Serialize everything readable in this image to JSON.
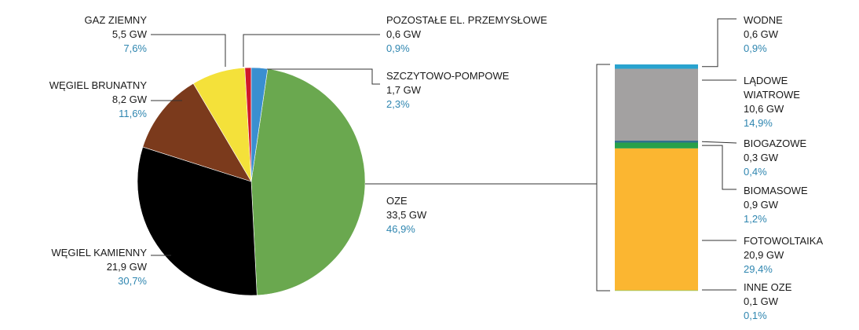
{
  "chart_data": {
    "type": "pie",
    "unit": "GW",
    "pie": {
      "slices": [
        {
          "name": "OZE",
          "gw": "33,5 GW",
          "pct": "46,9%",
          "value": 46.9,
          "color": "#6aa84f"
        },
        {
          "name": "WĘGIEL KAMIENNY",
          "gw": "21,9 GW",
          "pct": "30,7%",
          "value": 30.7,
          "color": "#000000"
        },
        {
          "name": "WĘGIEL BRUNATNY",
          "gw": "8,2 GW",
          "pct": "11,6%",
          "value": 11.6,
          "color": "#7b3a1c"
        },
        {
          "name": "GAZ ZIEMNY",
          "gw": "5,5 GW",
          "pct": "7,6%",
          "value": 7.6,
          "color": "#f4e13a"
        },
        {
          "name": "POZOSTAŁE EL. PRZEMYSŁOWE",
          "gw": "0,6 GW",
          "pct": "0,9%",
          "value": 0.9,
          "color": "#d0182a"
        },
        {
          "name": "SZCZYTOWO-POMPOWE",
          "gw": "1,7 GW",
          "pct": "2,3%",
          "value": 2.3,
          "color": "#3a8fd0"
        }
      ]
    },
    "stack": {
      "source": "OZE",
      "segments": [
        {
          "name": "INNE OZE",
          "gw": "0,1 GW",
          "pct": "0,1%",
          "value": 0.1,
          "color": "#8bc34a"
        },
        {
          "name": "FOTOWOLTAIKA",
          "gw": "20,9 GW",
          "pct": "29,4%",
          "value": 29.4,
          "color": "#fbb631"
        },
        {
          "name": "BIOMASOWE",
          "gw": "0,9 GW",
          "pct": "1,2%",
          "value": 1.2,
          "color": "#27a04a"
        },
        {
          "name": "BIOGAZOWE",
          "gw": "0,3 GW",
          "pct": "0,4%",
          "value": 0.4,
          "color": "#2e6f8e"
        },
        {
          "name": "LĄDOWE WIATROWE",
          "gw": "10,6 GW",
          "pct": "14,9%",
          "value": 14.9,
          "color": "#a3a1a1"
        },
        {
          "name": "WODNE",
          "gw": "0,6 GW",
          "pct": "0,9%",
          "value": 0.9,
          "color": "#29a3cf"
        }
      ]
    },
    "colors": {
      "pct_text": "#2f86b0",
      "leader": "#333333"
    }
  }
}
